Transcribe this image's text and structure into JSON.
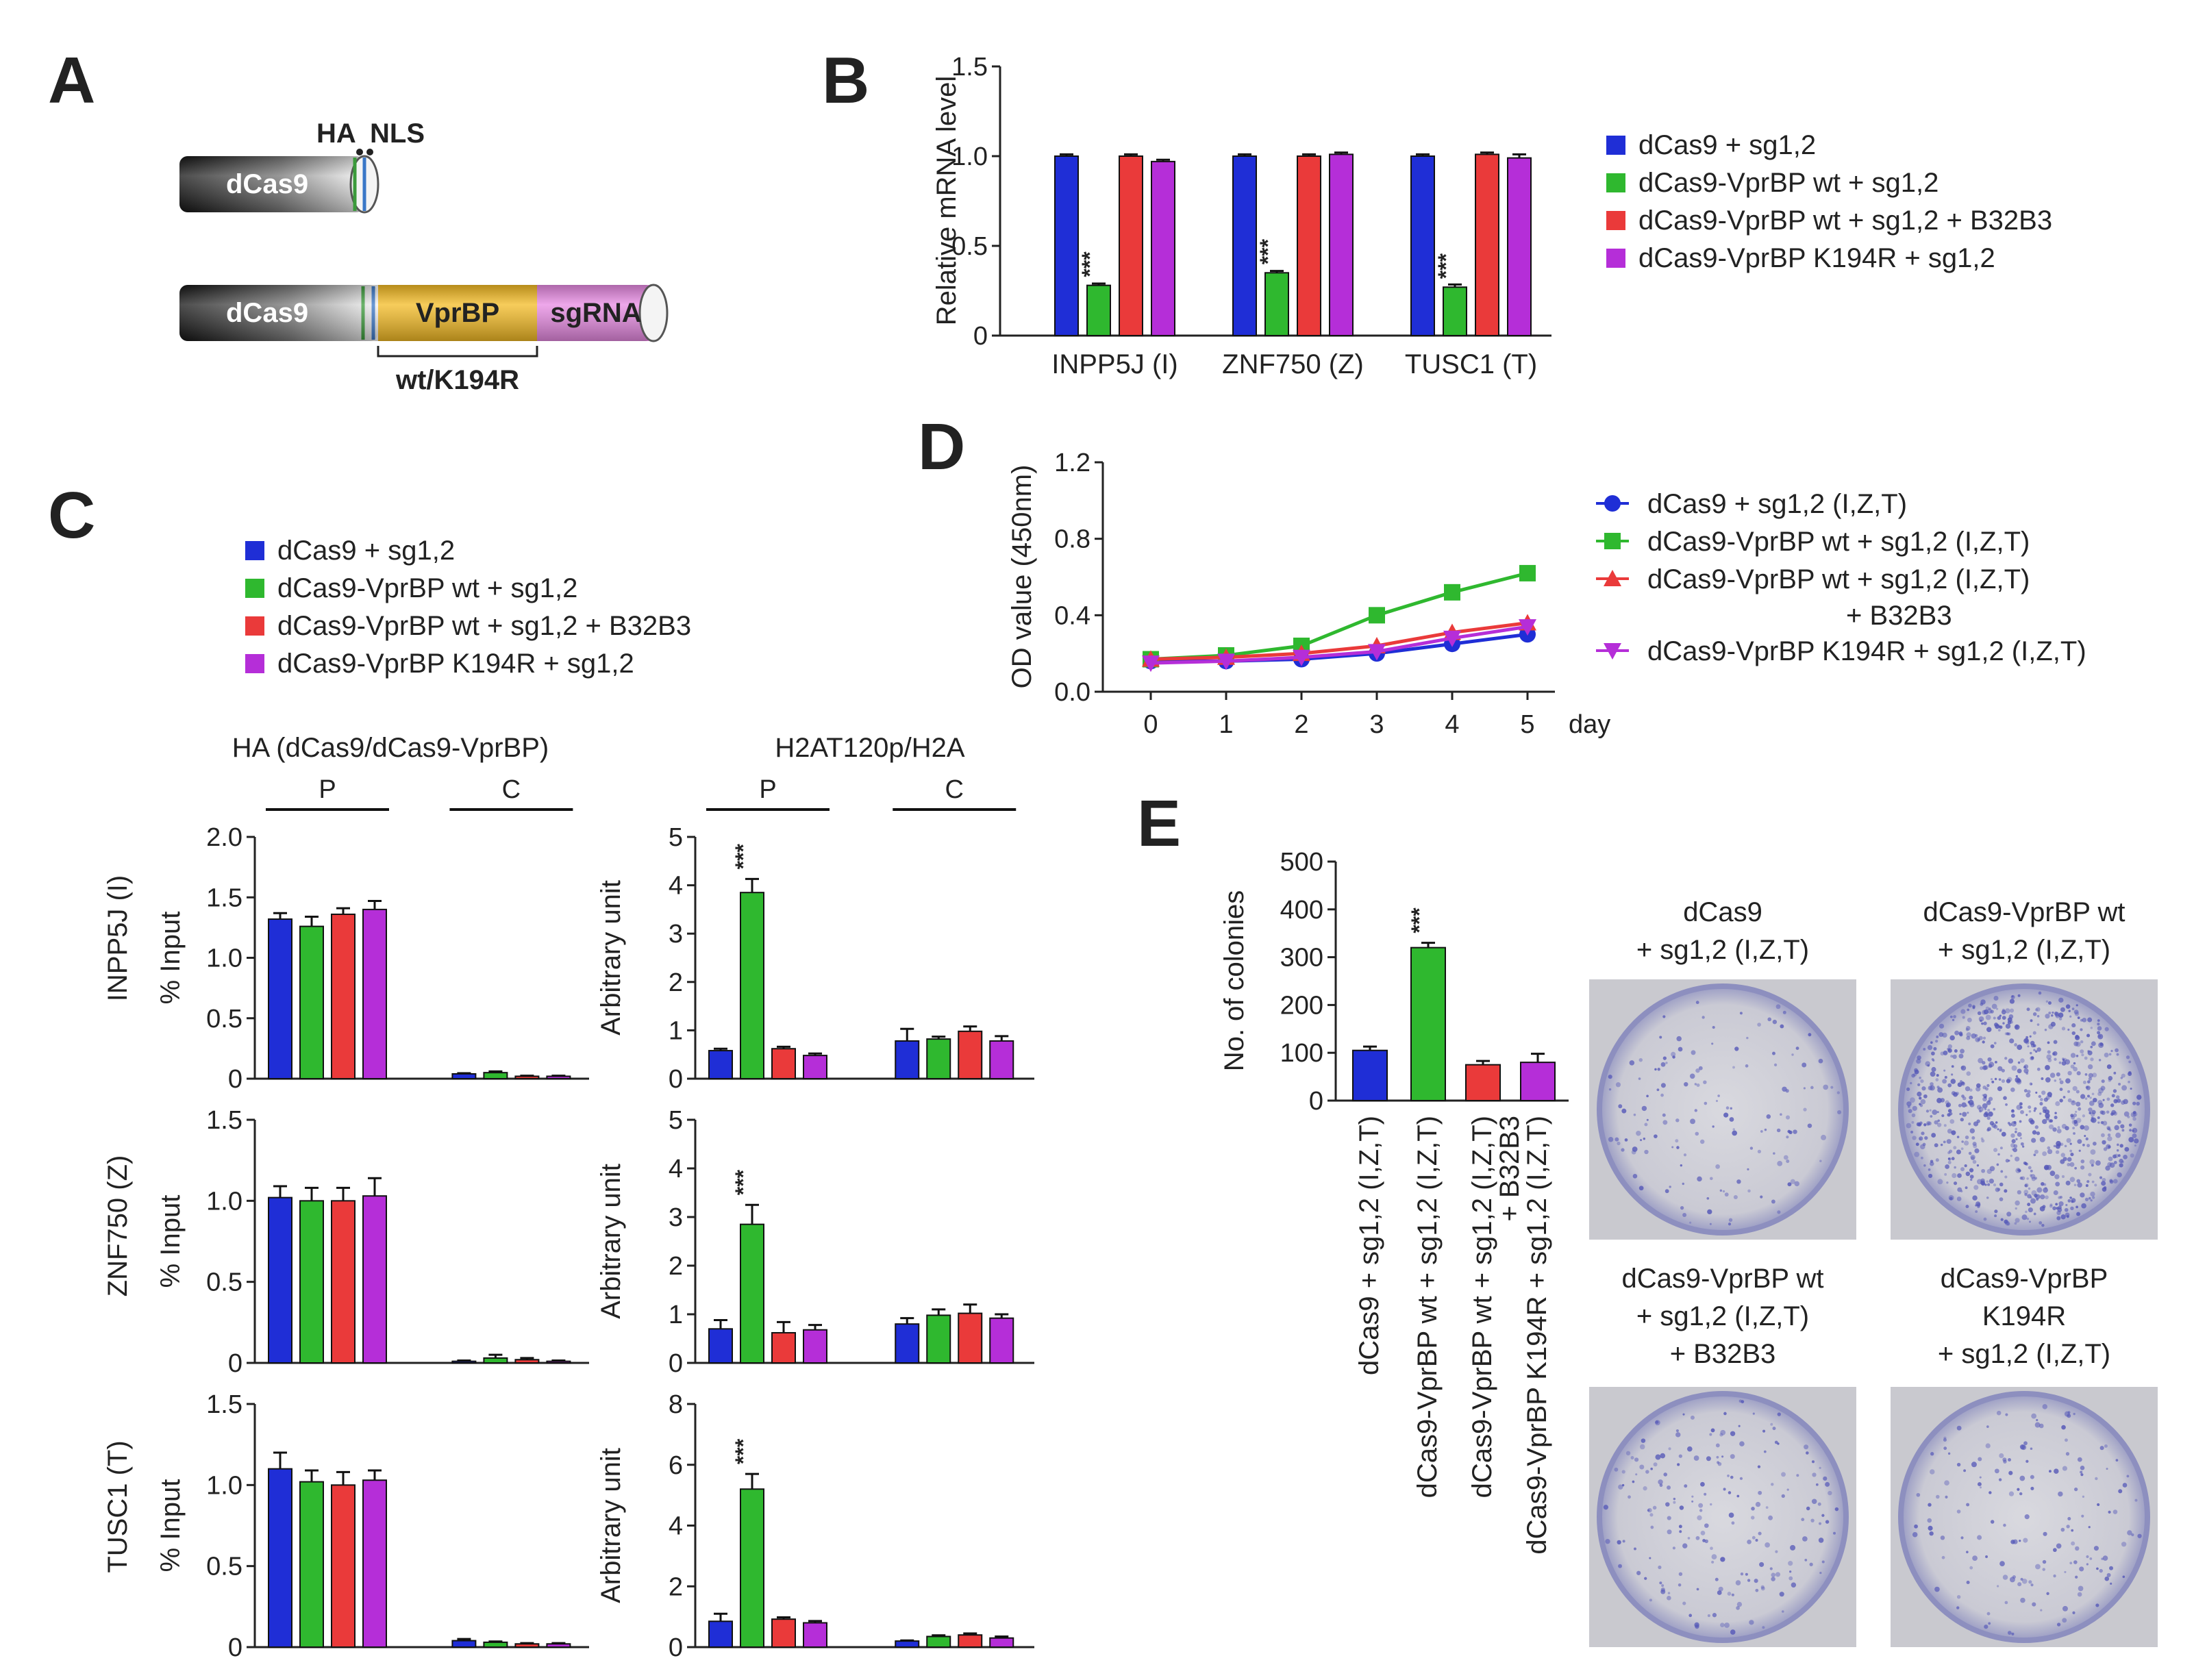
{
  "colors": {
    "blue": "#1f2ed6",
    "green": "#2fb82f",
    "red": "#ea3a3a",
    "purple": "#b52ed8",
    "vprbp": "#f4bb24",
    "sgrna": "#e88ae3",
    "dish_stain": "#5558b8"
  },
  "panels": {
    "A": "A",
    "B": "B",
    "C": "C",
    "D": "D",
    "E": "E"
  },
  "schematic": {
    "ha": "HA",
    "nls": "NLS",
    "dcas9": "dCas9",
    "vprbp": "VprBP",
    "sgrna": "sgRNA",
    "variants": "wt/K194R"
  },
  "legend4": [
    {
      "label": "dCas9 + sg1,2",
      "color": "#1f2ed6"
    },
    {
      "label": "dCas9-VprBP  wt + sg1,2",
      "color": "#2fb82f"
    },
    {
      "label": "dCas9-VprBP  wt + sg1,2 + B32B3",
      "color": "#ea3a3a"
    },
    {
      "label": "dCas9-VprBP  K194R + sg1,2",
      "color": "#b52ed8"
    }
  ],
  "legendD": [
    {
      "label": "dCas9 + sg1,2 (I,Z,T)",
      "label2": "",
      "color": "#1f2ed6",
      "marker": "circle"
    },
    {
      "label": "dCas9-VprBP  wt + sg1,2 (I,Z,T)",
      "label2": "",
      "color": "#2fb82f",
      "marker": "square"
    },
    {
      "label": "dCas9-VprBP  wt + sg1,2 (I,Z,T)",
      "label2": "+ B32B3",
      "color": "#ea3a3a",
      "marker": "triangle-up"
    },
    {
      "label": "dCas9-VprBP  K194R + sg1,2 (I,Z,T)",
      "label2": "",
      "color": "#b52ed8",
      "marker": "triangle-down"
    }
  ],
  "chart_data": [
    {
      "id": "B",
      "type": "bar",
      "ylabel": "Relative  mRNA level",
      "ylim": [
        0,
        1.5
      ],
      "yticks": [
        "0",
        "0.5",
        "1.0",
        "1.5"
      ],
      "categories": [
        "INPP5J (I)",
        "ZNF750  (Z)",
        "TUSC1  (T)"
      ],
      "series": [
        {
          "name": "dCas9 + sg1,2",
          "values": [
            1.0,
            1.0,
            1.0
          ],
          "errors": [
            0.01,
            0.01,
            0.01
          ]
        },
        {
          "name": "dCas9-VprBP wt + sg1,2",
          "values": [
            0.28,
            0.35,
            0.27
          ],
          "errors": [
            0.01,
            0.01,
            0.015
          ]
        },
        {
          "name": "dCas9-VprBP wt + sg1,2 + B32B3",
          "values": [
            1.0,
            1.0,
            1.01
          ],
          "errors": [
            0.01,
            0.01,
            0.01
          ]
        },
        {
          "name": "dCas9-VprBP K194R + sg1,2",
          "values": [
            0.97,
            1.01,
            0.99
          ],
          "errors": [
            0.01,
            0.01,
            0.02
          ]
        }
      ],
      "significance": [
        {
          "label": "***",
          "category": 0,
          "series": 1
        },
        {
          "label": "***",
          "category": 1,
          "series": 1
        },
        {
          "label": "***",
          "category": 2,
          "series": 1
        }
      ]
    },
    {
      "id": "C-HA-INPP5J",
      "type": "bar",
      "title": "HA (dCas9/dCas9-VprBP)",
      "ylabel": "% Input",
      "gene": "INPP5J (I)",
      "ylim": [
        0,
        2.0
      ],
      "yticks": [
        "0",
        "0.5",
        "1.0",
        "1.5",
        "2.0"
      ],
      "groups": [
        "P",
        "C"
      ],
      "series": [
        {
          "name": "dCas9 + sg1,2",
          "values": [
            1.32,
            0.04
          ],
          "errors": [
            0.05,
            0.005
          ]
        },
        {
          "name": "dCas9-VprBP wt + sg1,2",
          "values": [
            1.26,
            0.05
          ],
          "errors": [
            0.08,
            0.01
          ]
        },
        {
          "name": "dCas9-VprBP wt + sg1,2 + B32B3",
          "values": [
            1.36,
            0.02
          ],
          "errors": [
            0.05,
            0.005
          ]
        },
        {
          "name": "dCas9-VprBP K194R + sg1,2",
          "values": [
            1.4,
            0.02
          ],
          "errors": [
            0.07,
            0.005
          ]
        }
      ]
    },
    {
      "id": "C-H2A-INPP5J",
      "type": "bar",
      "title": "H2AT120p/H2A",
      "ylabel": "Arbitrary  unit",
      "ylim": [
        0,
        5
      ],
      "yticks": [
        "0",
        "1",
        "2",
        "3",
        "4",
        "5"
      ],
      "groups": [
        "P",
        "C"
      ],
      "series": [
        {
          "name": "dCas9 + sg1,2",
          "values": [
            0.58,
            0.78
          ],
          "errors": [
            0.04,
            0.25
          ]
        },
        {
          "name": "dCas9-VprBP wt + sg1,2",
          "values": [
            3.85,
            0.82
          ],
          "errors": [
            0.28,
            0.05
          ]
        },
        {
          "name": "dCas9-VprBP wt + sg1,2 + B32B3",
          "values": [
            0.62,
            0.98
          ],
          "errors": [
            0.04,
            0.1
          ]
        },
        {
          "name": "dCas9-VprBP K194R + sg1,2",
          "values": [
            0.48,
            0.78
          ],
          "errors": [
            0.04,
            0.1
          ]
        }
      ],
      "significance": [
        {
          "label": "***",
          "group": 0,
          "series": 1
        }
      ]
    },
    {
      "id": "C-HA-ZNF750",
      "type": "bar",
      "ylabel": "% Input",
      "gene": "ZNF750  (Z)",
      "ylim": [
        0,
        1.5
      ],
      "yticks": [
        "0",
        "0.5",
        "1.0",
        "1.5"
      ],
      "groups": [
        "P",
        "C"
      ],
      "series": [
        {
          "name": "dCas9 + sg1,2",
          "values": [
            1.02,
            0.01
          ],
          "errors": [
            0.07,
            0.005
          ]
        },
        {
          "name": "dCas9-VprBP wt + sg1,2",
          "values": [
            1.0,
            0.03
          ],
          "errors": [
            0.08,
            0.02
          ]
        },
        {
          "name": "dCas9-VprBP wt + sg1,2 + B32B3",
          "values": [
            1.0,
            0.02
          ],
          "errors": [
            0.08,
            0.01
          ]
        },
        {
          "name": "dCas9-VprBP K194R + sg1,2",
          "values": [
            1.03,
            0.01
          ],
          "errors": [
            0.11,
            0.005
          ]
        }
      ]
    },
    {
      "id": "C-H2A-ZNF750",
      "type": "bar",
      "ylabel": "Arbitrary  unit",
      "ylim": [
        0,
        5
      ],
      "yticks": [
        "0",
        "1",
        "2",
        "3",
        "4",
        "5"
      ],
      "groups": [
        "P",
        "C"
      ],
      "series": [
        {
          "name": "dCas9 + sg1,2",
          "values": [
            0.7,
            0.8
          ],
          "errors": [
            0.18,
            0.12
          ]
        },
        {
          "name": "dCas9-VprBP wt + sg1,2",
          "values": [
            2.85,
            0.98
          ],
          "errors": [
            0.4,
            0.12
          ]
        },
        {
          "name": "dCas9-VprBP wt + sg1,2 + B32B3",
          "values": [
            0.62,
            1.02
          ],
          "errors": [
            0.22,
            0.18
          ]
        },
        {
          "name": "dCas9-VprBP K194R + sg1,2",
          "values": [
            0.68,
            0.92
          ],
          "errors": [
            0.1,
            0.08
          ]
        }
      ],
      "significance": [
        {
          "label": "***",
          "group": 0,
          "series": 1
        }
      ]
    },
    {
      "id": "C-HA-TUSC1",
      "type": "bar",
      "ylabel": "% Input",
      "gene": "TUSC1  (T)",
      "ylim": [
        0,
        1.5
      ],
      "yticks": [
        "0",
        "0.5",
        "1.0",
        "1.5"
      ],
      "groups": [
        "P",
        "C"
      ],
      "series": [
        {
          "name": "dCas9 + sg1,2",
          "values": [
            1.1,
            0.04
          ],
          "errors": [
            0.1,
            0.01
          ]
        },
        {
          "name": "dCas9-VprBP wt + sg1,2",
          "values": [
            1.02,
            0.03
          ],
          "errors": [
            0.07,
            0.005
          ]
        },
        {
          "name": "dCas9-VprBP wt + sg1,2 + B32B3",
          "values": [
            1.0,
            0.02
          ],
          "errors": [
            0.08,
            0.005
          ]
        },
        {
          "name": "dCas9-VprBP K194R + sg1,2",
          "values": [
            1.03,
            0.02
          ],
          "errors": [
            0.06,
            0.005
          ]
        }
      ]
    },
    {
      "id": "C-H2A-TUSC1",
      "type": "bar",
      "ylabel": "Arbitrary  unit",
      "ylim": [
        0,
        8
      ],
      "yticks": [
        "0",
        "2",
        "4",
        "6",
        "8"
      ],
      "groups": [
        "P",
        "C"
      ],
      "series": [
        {
          "name": "dCas9 + sg1,2",
          "values": [
            0.85,
            0.2
          ],
          "errors": [
            0.25,
            0.02
          ]
        },
        {
          "name": "dCas9-VprBP wt + sg1,2",
          "values": [
            5.2,
            0.35
          ],
          "errors": [
            0.5,
            0.04
          ]
        },
        {
          "name": "dCas9-VprBP wt + sg1,2 + B32B3",
          "values": [
            0.92,
            0.4
          ],
          "errors": [
            0.06,
            0.05
          ]
        },
        {
          "name": "dCas9-VprBP K194R + sg1,2",
          "values": [
            0.8,
            0.3
          ],
          "errors": [
            0.06,
            0.05
          ]
        }
      ],
      "significance": [
        {
          "label": "***",
          "group": 0,
          "series": 1
        }
      ]
    },
    {
      "id": "D",
      "type": "line",
      "ylabel": "OD value (450nm)",
      "xlabel": "day",
      "x": [
        0,
        1,
        2,
        3,
        4,
        5
      ],
      "ylim": [
        0,
        1.2
      ],
      "yticks": [
        "0.0",
        "0.4",
        "0.8",
        "1.2"
      ],
      "xticks": [
        "0",
        "1",
        "2",
        "3",
        "4",
        "5"
      ],
      "series": [
        {
          "name": "dCas9 + sg1,2 (I,Z,T)",
          "values": [
            0.16,
            0.16,
            0.17,
            0.2,
            0.25,
            0.3
          ]
        },
        {
          "name": "dCas9-VprBP wt + sg1,2 (I,Z,T)",
          "values": [
            0.17,
            0.19,
            0.24,
            0.4,
            0.52,
            0.62
          ]
        },
        {
          "name": "dCas9-VprBP wt + sg1,2 (I,Z,T) + B32B3",
          "values": [
            0.17,
            0.18,
            0.2,
            0.24,
            0.31,
            0.36
          ]
        },
        {
          "name": "dCas9-VprBP K194R + sg1,2 (I,Z,T)",
          "values": [
            0.15,
            0.16,
            0.18,
            0.21,
            0.28,
            0.34
          ]
        }
      ]
    },
    {
      "id": "E",
      "type": "bar",
      "ylabel": "No. of colonies",
      "ylim": [
        0,
        500
      ],
      "yticks": [
        "0",
        "100",
        "200",
        "300",
        "400",
        "500"
      ],
      "categories": [
        "dCas9 + sg1,2 (I,Z,T)",
        "dCas9-VprBP  wt + sg1,2 (I,Z,T)",
        "dCas9-VprBP  wt + sg1,2 (I,Z,T)",
        "dCas9-VprBP  K194R + sg1,2 (I,Z,T)"
      ],
      "category_extra": [
        "",
        "",
        "+ B32B3",
        ""
      ],
      "values": [
        105,
        320,
        75,
        80
      ],
      "errors": [
        8,
        10,
        8,
        18
      ],
      "significance": [
        {
          "label": "***",
          "category": 1
        }
      ]
    }
  ],
  "photos": [
    {
      "line1": "dCas9",
      "line2": "+  sg1,2 (I,Z,T)",
      "line3": "",
      "density": 0.12
    },
    {
      "line1": "dCas9-VprBP  wt",
      "line2": "+ sg1,2 (I,Z,T)",
      "line3": "",
      "density": 0.9
    },
    {
      "line1": "dCas9-VprBP  wt",
      "line2": "+ sg1,2 (I,Z,T)",
      "line3": "+ B32B3",
      "density": 0.18
    },
    {
      "line1": "dCas9-VprBP",
      "line2": "K194R",
      "line3": "+ sg1,2 (I,Z,T)",
      "density": 0.14
    }
  ]
}
